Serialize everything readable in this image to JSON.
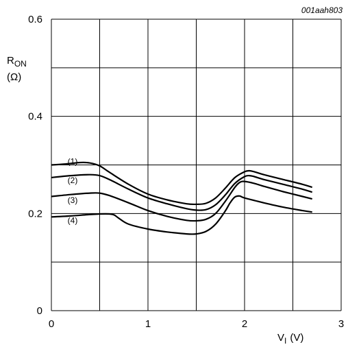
{
  "figure_id": "001aah803",
  "chart_data": {
    "type": "line",
    "xlim": [
      0,
      3
    ],
    "ylim": [
      0,
      0.6
    ],
    "x_ticks": [
      "0",
      "1",
      "2",
      "3"
    ],
    "y_ticks": [
      "0",
      "0.2",
      "0.4",
      "0.6"
    ],
    "xlabel": {
      "main": "V",
      "sub": "I",
      "unit": "(V)"
    },
    "ylabel": {
      "main": "R",
      "sub": "ON",
      "unit": "(Ω)"
    },
    "grid": true,
    "series": [
      {
        "name": "(1)",
        "x": [
          0,
          0.15,
          0.3,
          0.4,
          0.5,
          0.6,
          0.8,
          1.0,
          1.2,
          1.4,
          1.5,
          1.6,
          1.7,
          1.8,
          1.9,
          2.0,
          2.05,
          2.1,
          2.2,
          2.4,
          2.6,
          2.7
        ],
        "y": [
          0.3,
          0.302,
          0.305,
          0.304,
          0.298,
          0.285,
          0.26,
          0.24,
          0.228,
          0.22,
          0.219,
          0.221,
          0.232,
          0.252,
          0.274,
          0.286,
          0.288,
          0.286,
          0.28,
          0.27,
          0.26,
          0.254
        ]
      },
      {
        "name": "(2)",
        "x": [
          0,
          0.2,
          0.4,
          0.5,
          0.6,
          0.8,
          1.0,
          1.2,
          1.4,
          1.5,
          1.6,
          1.7,
          1.8,
          1.9,
          2.0,
          2.05,
          2.1,
          2.2,
          2.4,
          2.6,
          2.7
        ],
        "y": [
          0.274,
          0.278,
          0.28,
          0.278,
          0.27,
          0.25,
          0.232,
          0.22,
          0.21,
          0.207,
          0.208,
          0.218,
          0.238,
          0.262,
          0.276,
          0.278,
          0.276,
          0.27,
          0.26,
          0.25,
          0.244
        ]
      },
      {
        "name": "(3)",
        "x": [
          0,
          0.2,
          0.4,
          0.5,
          0.6,
          0.8,
          1.0,
          1.2,
          1.4,
          1.5,
          1.6,
          1.7,
          1.8,
          1.9,
          1.95,
          2.0,
          2.1,
          2.2,
          2.4,
          2.6,
          2.7
        ],
        "y": [
          0.235,
          0.239,
          0.242,
          0.242,
          0.237,
          0.222,
          0.206,
          0.194,
          0.186,
          0.185,
          0.188,
          0.2,
          0.225,
          0.254,
          0.264,
          0.266,
          0.262,
          0.256,
          0.245,
          0.235,
          0.23
        ]
      },
      {
        "name": "(4)",
        "x": [
          0,
          0.2,
          0.4,
          0.5,
          0.6,
          0.65,
          0.7,
          0.8,
          1.0,
          1.2,
          1.4,
          1.5,
          1.6,
          1.7,
          1.8,
          1.85,
          1.9,
          1.95,
          2.0,
          2.2,
          2.4,
          2.6,
          2.7
        ],
        "y": [
          0.193,
          0.195,
          0.198,
          0.199,
          0.199,
          0.197,
          0.19,
          0.178,
          0.168,
          0.162,
          0.158,
          0.158,
          0.163,
          0.178,
          0.205,
          0.222,
          0.234,
          0.236,
          0.232,
          0.222,
          0.213,
          0.206,
          0.203
        ]
      }
    ],
    "label_anchor_x": 0.22,
    "label_anchor_y": [
      0.307,
      0.268,
      0.227,
      0.186
    ]
  }
}
